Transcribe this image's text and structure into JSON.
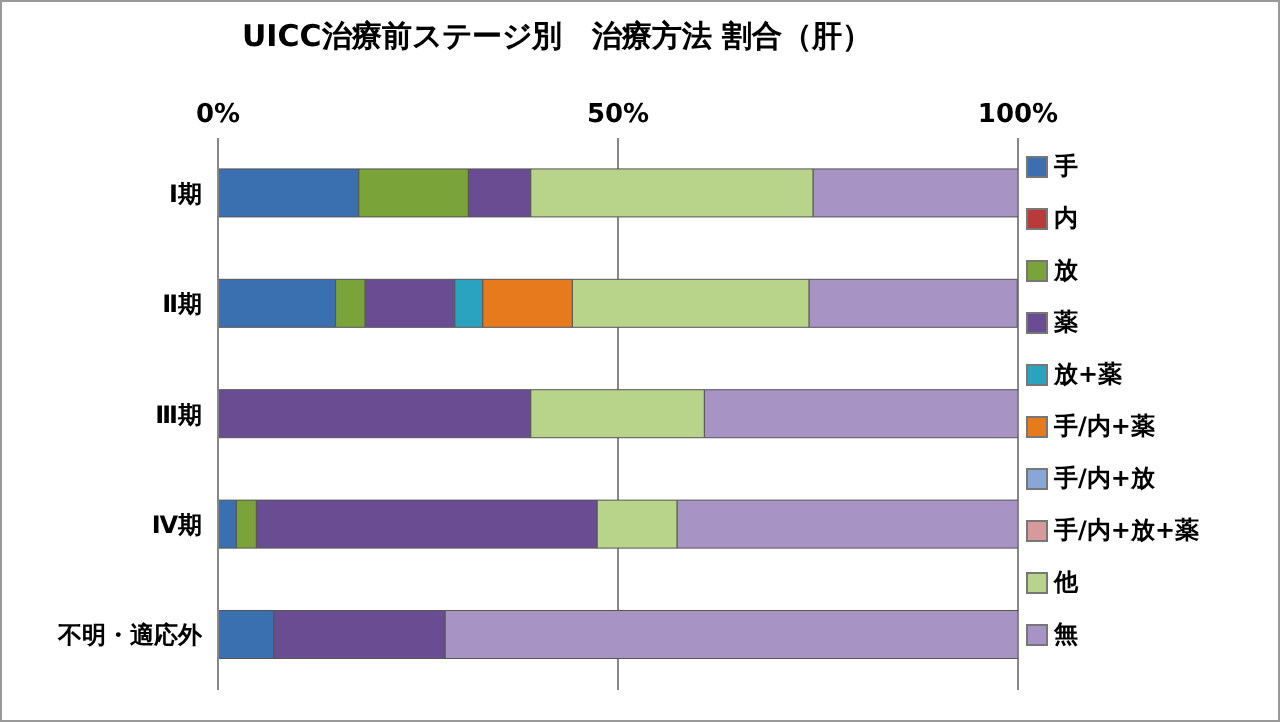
{
  "chart_data": {
    "type": "bar",
    "orientation": "horizontal",
    "stacked": true,
    "title": "UICC治療前ステージ別　治療方法 割合（肝）",
    "categories": [
      "Ⅰ期",
      "Ⅱ期",
      "Ⅲ期",
      "Ⅳ期",
      "不明・適応外"
    ],
    "series": [
      {
        "name": "手",
        "color": "#3a6fb0",
        "values": [
          17.6,
          14.7,
          0,
          2.3,
          7.0
        ]
      },
      {
        "name": "内",
        "color": "#b83a3a",
        "values": [
          0,
          0,
          0,
          0,
          0
        ]
      },
      {
        "name": "放",
        "color": "#7aa33a",
        "values": [
          13.7,
          3.7,
          0,
          2.5,
          0
        ]
      },
      {
        "name": "薬",
        "color": "#6a4c93",
        "values": [
          7.8,
          11.2,
          39.1,
          42.6,
          21.4
        ]
      },
      {
        "name": "放+薬",
        "color": "#2aa3c0",
        "values": [
          0,
          3.5,
          0,
          0,
          0
        ]
      },
      {
        "name": "手/内+薬",
        "color": "#e87a1e",
        "values": [
          0,
          11.2,
          0,
          0,
          0
        ]
      },
      {
        "name": "手/内+放",
        "color": "#8aa6d6",
        "values": [
          0,
          0,
          0,
          0,
          0
        ]
      },
      {
        "name": "手/内+放+薬",
        "color": "#d69a9a",
        "values": [
          0,
          0,
          0,
          0,
          0
        ]
      },
      {
        "name": "他",
        "color": "#b8d48a",
        "values": [
          35.3,
          29.6,
          21.7,
          10.0,
          0
        ]
      },
      {
        "name": "無",
        "color": "#a894c4",
        "values": [
          25.6,
          26.0,
          39.2,
          42.6,
          71.6
        ]
      }
    ],
    "xlim": [
      0,
      100
    ],
    "xticks": [
      {
        "value": 0,
        "label": "0%"
      },
      {
        "value": 50,
        "label": "50%"
      },
      {
        "value": 100,
        "label": "100%"
      }
    ],
    "grid": "x",
    "legend": "right"
  }
}
